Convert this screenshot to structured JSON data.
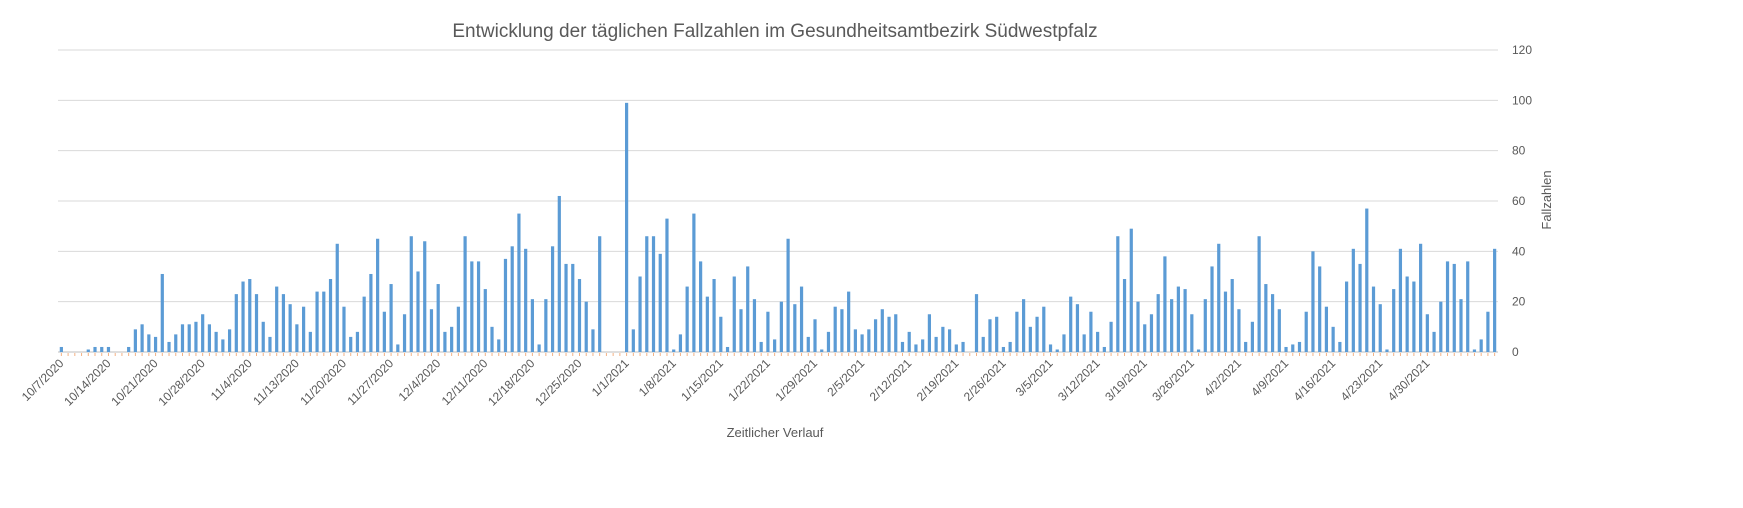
{
  "chart_data": {
    "type": "bar",
    "title": "Entwicklung der täglichen Fallzahlen im Gesundheitsamtbezirk Südwestpfalz",
    "xlabel": "Zeitlicher Verlauf",
    "ylabel": "Fallzahlen",
    "y_axis_side": "right",
    "ylim": [
      0,
      120
    ],
    "yticks": [
      0,
      20,
      40,
      60,
      80,
      100,
      120
    ],
    "grid": true,
    "legend": "none",
    "bar_color": "#5B9BD5",
    "tick_labels": [
      "10/7/2020",
      "10/14/2020",
      "10/21/2020",
      "10/28/2020",
      "11/4/2020",
      "11/13/2020",
      "11/20/2020",
      "11/27/2020",
      "12/4/2020",
      "12/11/2020",
      "12/18/2020",
      "12/25/2020",
      "1/1/2021",
      "1/8/2021",
      "1/15/2021",
      "1/22/2021",
      "1/29/2021",
      "2/5/2021",
      "2/12/2021",
      "2/19/2021",
      "2/26/2021",
      "3/5/2021",
      "3/12/2021",
      "3/19/2021",
      "3/26/2021",
      "4/2/2021",
      "4/9/2021",
      "4/16/2021",
      "4/23/2021",
      "4/30/2021"
    ],
    "values": [
      2,
      0,
      0,
      0,
      1,
      2,
      2,
      2,
      0,
      0,
      2,
      9,
      11,
      7,
      6,
      31,
      4,
      7,
      11,
      11,
      12,
      15,
      11,
      8,
      5,
      9,
      23,
      28,
      29,
      23,
      12,
      6,
      26,
      23,
      19,
      11,
      18,
      8,
      24,
      24,
      29,
      43,
      18,
      6,
      8,
      22,
      31,
      45,
      16,
      27,
      3,
      15,
      46,
      32,
      44,
      17,
      27,
      8,
      10,
      18,
      46,
      36,
      36,
      25,
      10,
      5,
      37,
      42,
      55,
      41,
      21,
      3,
      21,
      42,
      62,
      35,
      35,
      29,
      20,
      9,
      46,
      0,
      0,
      0,
      99,
      9,
      30,
      46,
      46,
      39,
      53,
      1,
      7,
      26,
      55,
      36,
      22,
      29,
      14,
      2,
      30,
      17,
      34,
      21,
      4,
      16,
      5,
      20,
      45,
      19,
      26,
      6,
      13,
      1,
      8,
      18,
      17,
      24,
      9,
      7,
      9,
      13,
      17,
      14,
      15,
      4,
      8,
      3,
      5,
      15,
      6,
      10,
      9,
      3,
      4,
      0,
      23,
      6,
      13,
      14,
      2,
      4,
      16,
      21,
      10,
      14,
      18,
      3,
      1,
      7,
      22,
      19,
      7,
      16,
      8,
      2,
      12,
      46,
      29,
      49,
      20,
      11,
      15,
      23,
      38,
      21,
      26,
      25,
      15,
      1,
      21,
      34,
      43,
      24,
      29,
      17,
      4,
      12,
      46,
      27,
      23,
      17,
      2,
      3,
      4,
      16,
      40,
      34,
      18,
      10,
      4,
      28,
      41,
      35,
      57,
      26,
      19,
      1,
      25,
      41,
      30,
      28,
      43,
      15,
      8,
      20,
      36,
      35,
      21,
      36,
      1,
      5,
      16,
      41
    ]
  }
}
